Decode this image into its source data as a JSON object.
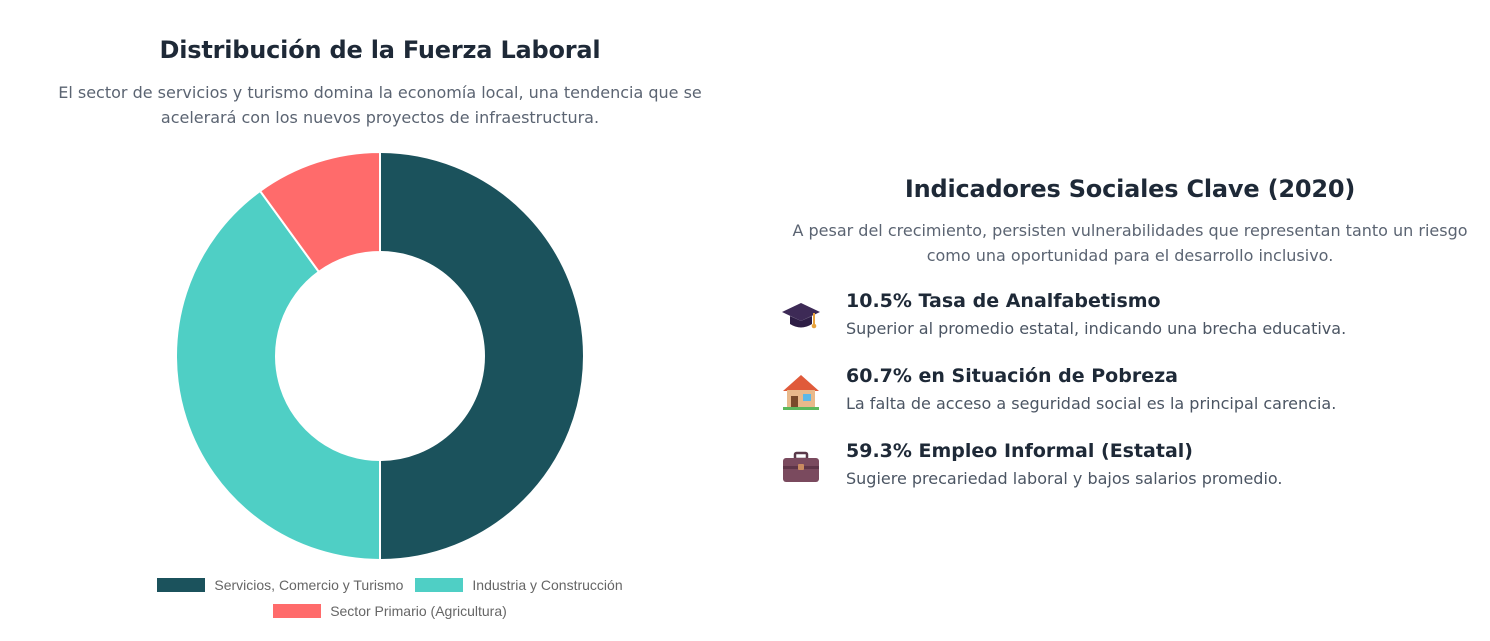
{
  "workforce": {
    "title": "Distribución de la Fuerza Laboral",
    "subtitle_line1": "El sector de servicios y turismo domina la economía local, una tendencia que se",
    "subtitle_line2": "acelerará con los nuevos proyectos de infraestructura."
  },
  "chart_data": {
    "type": "pie",
    "donut": true,
    "categories": [
      "Servicios, Comercio y Turismo",
      "Industria y Construcción",
      "Sector Primario (Agricultura)"
    ],
    "values": [
      50,
      40,
      10
    ],
    "colors": [
      "#1b525c",
      "#4fcfc5",
      "#ff6b6b"
    ],
    "legend_position": "bottom"
  },
  "social": {
    "title": "Indicadores Sociales Clave (2020)",
    "subtitle_line1": "A pesar del crecimiento, persisten vulnerabilidades que representan tanto un riesgo",
    "subtitle_line2": "como una oportunidad para el desarrollo inclusivo.",
    "indicators": [
      {
        "icon": "graduation-cap-icon",
        "title": "10.5% Tasa de Analfabetismo",
        "description": "Superior al promedio estatal, indicando una brecha educativa."
      },
      {
        "icon": "house-icon",
        "title": "60.7% en Situación de Pobreza",
        "description": "La falta de acceso a seguridad social es la principal carencia."
      },
      {
        "icon": "briefcase-icon",
        "title": "59.3% Empleo Informal (Estatal)",
        "description": "Sugiere precariedad laboral y bajos salarios promedio."
      }
    ]
  }
}
